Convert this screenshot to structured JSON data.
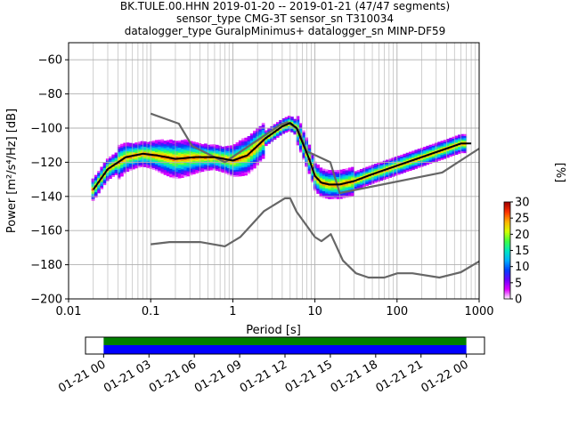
{
  "title_lines": [
    "BK.TULE.00.HHN   2019-01-20 -- 2019-01-21  (47/47 segments)",
    "sensor_type CMG-3T sensor_sn T310034",
    "datalogger_type GuralpMinimus+ datalogger_sn MINP-DF59"
  ],
  "chart_data": {
    "type": "heatmap",
    "xlabel": "Period [s]",
    "ylabel": "Power [m²/s⁴/Hz] [dB]",
    "xscale": "log",
    "xlim": [
      0.01,
      1000
    ],
    "ylim": [
      -200,
      -50
    ],
    "x_ticks": [
      0.01,
      0.1,
      1,
      10,
      100,
      1000
    ],
    "x_tick_labels": [
      "0.01",
      "0.1",
      "1",
      "10",
      "100",
      "1000"
    ],
    "y_ticks": [
      -200,
      -180,
      -160,
      -140,
      -120,
      -100,
      -80,
      -60
    ],
    "y_tick_labels": [
      "−200",
      "−180",
      "−160",
      "−140",
      "−120",
      "−100",
      "−80",
      "−60"
    ],
    "grid": true,
    "colorbar": {
      "label": "[%]",
      "min": 0,
      "max": 30,
      "ticks": [
        0,
        5,
        10,
        15,
        20,
        25,
        30
      ],
      "colors": [
        "#ffffff",
        "#e000ff",
        "#6a00ff",
        "#0040ff",
        "#00b0ff",
        "#00e8c0",
        "#40ff40",
        "#d8ff00",
        "#ffb000",
        "#ff3000",
        "#a00000"
      ]
    },
    "series": [
      {
        "role": "high-noise-model",
        "color": "#666666",
        "x": [
          0.1,
          0.22,
          0.32,
          0.8,
          3.8,
          4.6,
          6.3,
          7.9,
          15.4,
          20,
          354.8,
          1000
        ],
        "y": [
          -91.5,
          -97.4,
          -110.5,
          -120,
          -98,
          -96.5,
          -101,
          -113.5,
          -120,
          -138,
          -126,
          -112
        ]
      },
      {
        "role": "low-noise-model",
        "color": "#666666",
        "x": [
          0.1,
          0.17,
          0.4,
          0.8,
          1.24,
          2.4,
          4.3,
          5,
          6,
          10,
          12,
          15.6,
          21.9,
          31.6,
          45,
          70,
          101,
          154,
          328,
          600,
          1000
        ],
        "y": [
          -168,
          -166.7,
          -166.7,
          -169.2,
          -163.7,
          -148.6,
          -141.1,
          -141.1,
          -149,
          -163.8,
          -166.2,
          -162.1,
          -177.5,
          -185,
          -187.5,
          -187.5,
          -185,
          -185,
          -187.5,
          -184.4,
          -178
        ]
      },
      {
        "role": "mode",
        "color": "#000000",
        "x": [
          0.02,
          0.03,
          0.05,
          0.08,
          0.12,
          0.2,
          0.35,
          0.6,
          1,
          1.5,
          2.5,
          4,
          5,
          6,
          7,
          8.5,
          10,
          12,
          15,
          20,
          30,
          50,
          100,
          200,
          400,
          600,
          800
        ],
        "y": [
          -136,
          -124,
          -117,
          -115,
          -116,
          -118,
          -117,
          -117,
          -119,
          -116,
          -106,
          -99,
          -97,
          -100,
          -108,
          -118,
          -128,
          -132,
          -133,
          -133,
          -131,
          -127,
          -122,
          -117,
          -112,
          -109,
          -109
        ]
      }
    ],
    "time_coverage": {
      "tick_labels": [
        "01-21 00",
        "01-21 03",
        "01-21 06",
        "01-21 09",
        "01-21 12",
        "01-21 15",
        "01-21 18",
        "01-21 21",
        "01-22 00"
      ],
      "range_hours": [
        -1.2,
        25.2
      ],
      "covered_hours": [
        0,
        24
      ],
      "bar_colors": [
        "#008000",
        "#0000ff"
      ]
    }
  }
}
